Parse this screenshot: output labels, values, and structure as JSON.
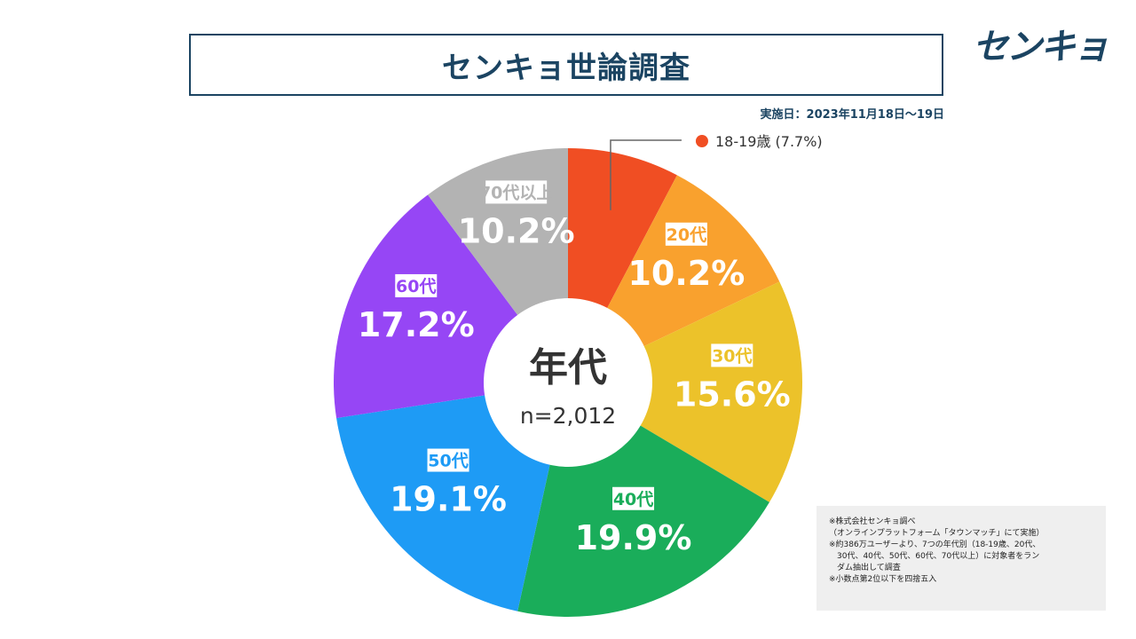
{
  "header": {
    "title": "センキョ世論調査",
    "logo_text": "センキョ",
    "survey_date": "実施日：2023年11月18日〜19日"
  },
  "chart_data": {
    "type": "pie",
    "donut": true,
    "center_title": "年代",
    "center_subtitle": "n=2,012",
    "series": [
      {
        "label": "18-19歳",
        "value": 7.7,
        "display": "7.7%",
        "color": "#f04e23"
      },
      {
        "label": "20代",
        "value": 10.2,
        "display": "10.2%",
        "color": "#f9a12e"
      },
      {
        "label": "30代",
        "value": 15.6,
        "display": "15.6%",
        "color": "#ecc22a"
      },
      {
        "label": "40代",
        "value": 19.9,
        "display": "19.9%",
        "color": "#1aad5a"
      },
      {
        "label": "50代",
        "value": 19.1,
        "display": "19.1%",
        "color": "#1e9bf5"
      },
      {
        "label": "60代",
        "value": 17.2,
        "display": "17.2%",
        "color": "#9646f5"
      },
      {
        "label": "70代以上",
        "value": 10.2,
        "display": "10.2%",
        "color": "#b3b3b3"
      }
    ],
    "callout": {
      "label": "18-19歳 (7.7%)",
      "color": "#f04e23"
    }
  },
  "notes": [
    "※株式会社センキョ調べ",
    "（オンラインプラットフォーム「タウンマッチ」にて実施）",
    "※約386万ユーザーより、7つの年代別（18-19歳、20代、",
    "　30代、40代、50代、60代、70代以上）に対象者をラン",
    "　ダム抽出して調査",
    "※小数点第2位以下を四捨五入"
  ]
}
